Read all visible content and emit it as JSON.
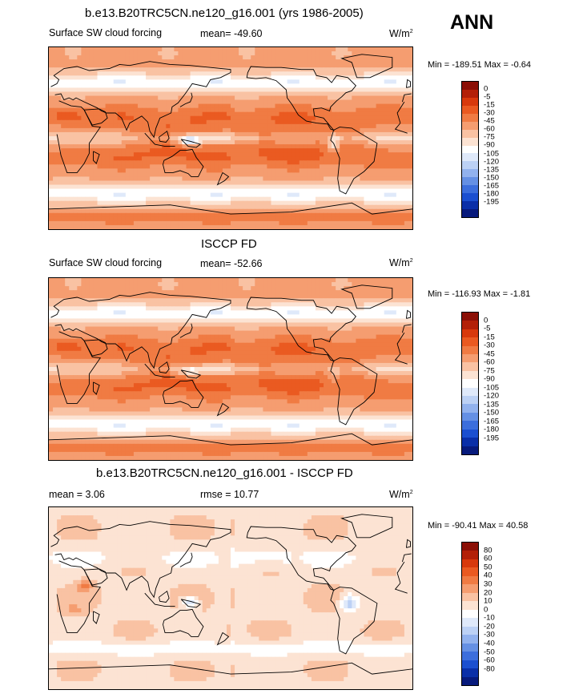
{
  "season": "ANN",
  "panels": [
    {
      "title": "b.e13.B20TRC5CN.ne120_g16.001 (yrs 1986-2005)",
      "field": "Surface SW cloud forcing",
      "stat": "mean= -49.60",
      "units": "W/m",
      "units_exp": "2",
      "minmax": "Min = -189.51 Max =  -0.64",
      "palette": "forcing"
    },
    {
      "title": "ISCCP FD",
      "field": "Surface SW cloud forcing",
      "stat": "mean= -52.66",
      "units": "W/m",
      "units_exp": "2",
      "minmax": "Min = -116.93 Max =  -1.81",
      "palette": "forcing"
    },
    {
      "title": "b.e13.B20TRC5CN.ne120_g16.001 - ISCCP FD",
      "mean": "mean =   3.06",
      "rmse": "rmse =  10.77",
      "units": "W/m",
      "units_exp": "2",
      "minmax": "Min = -90.41 Max =  40.58",
      "palette": "difference"
    }
  ],
  "chart_data": [
    {
      "type": "heatmap",
      "title": "b.e13.B20TRC5CN.ne120_g16.001 (yrs 1986-2005)",
      "variable": "Surface SW cloud forcing",
      "mean": -49.6,
      "min": -189.51,
      "max": -0.64,
      "units": "W/m2",
      "colorbar_levels": [
        "0",
        "-5",
        "-15",
        "-30",
        "-45",
        "-60",
        "-75",
        "-90",
        "-105",
        "-120",
        "-135",
        "-150",
        "-165",
        "-180",
        "-195"
      ],
      "colorbar_colors": [
        "#8b0f06",
        "#b32008",
        "#d8390c",
        "#ea5a21",
        "#f07b43",
        "#f59d70",
        "#f9c2a3",
        "#fce3d3",
        "#ffffff",
        "#dfe9fa",
        "#bcd1f5",
        "#92b2ee",
        "#6590e4",
        "#3c6edc",
        "#1b4fd0",
        "#0a2fa8",
        "#071a7c"
      ]
    },
    {
      "type": "heatmap",
      "title": "ISCCP FD",
      "variable": "Surface SW cloud forcing",
      "mean": -52.66,
      "min": -116.93,
      "max": -1.81,
      "units": "W/m2",
      "colorbar_levels": [
        "0",
        "-5",
        "-15",
        "-30",
        "-45",
        "-60",
        "-75",
        "-90",
        "-105",
        "-120",
        "-135",
        "-150",
        "-165",
        "-180",
        "-195"
      ],
      "colorbar_colors": [
        "#8b0f06",
        "#b32008",
        "#d8390c",
        "#ea5a21",
        "#f07b43",
        "#f59d70",
        "#f9c2a3",
        "#fce3d3",
        "#ffffff",
        "#dfe9fa",
        "#bcd1f5",
        "#92b2ee",
        "#6590e4",
        "#3c6edc",
        "#1b4fd0",
        "#0a2fa8",
        "#071a7c"
      ]
    },
    {
      "type": "heatmap",
      "title": "b.e13.B20TRC5CN.ne120_g16.001 - ISCCP FD",
      "mean": 3.06,
      "rmse": 10.77,
      "min": -90.41,
      "max": 40.58,
      "units": "W/m2",
      "colorbar_levels": [
        "80",
        "60",
        "50",
        "40",
        "30",
        "20",
        "10",
        "0",
        "-10",
        "-20",
        "-30",
        "-40",
        "-50",
        "-60",
        "-80"
      ],
      "colorbar_colors": [
        "#8b0f06",
        "#b32008",
        "#d8390c",
        "#ea5a21",
        "#f07b43",
        "#f59d70",
        "#f9c2a3",
        "#fce3d3",
        "#ffffff",
        "#dfe9fa",
        "#bcd1f5",
        "#92b2ee",
        "#6590e4",
        "#3c6edc",
        "#1b4fd0",
        "#0a2fa8",
        "#071a7c"
      ]
    }
  ]
}
